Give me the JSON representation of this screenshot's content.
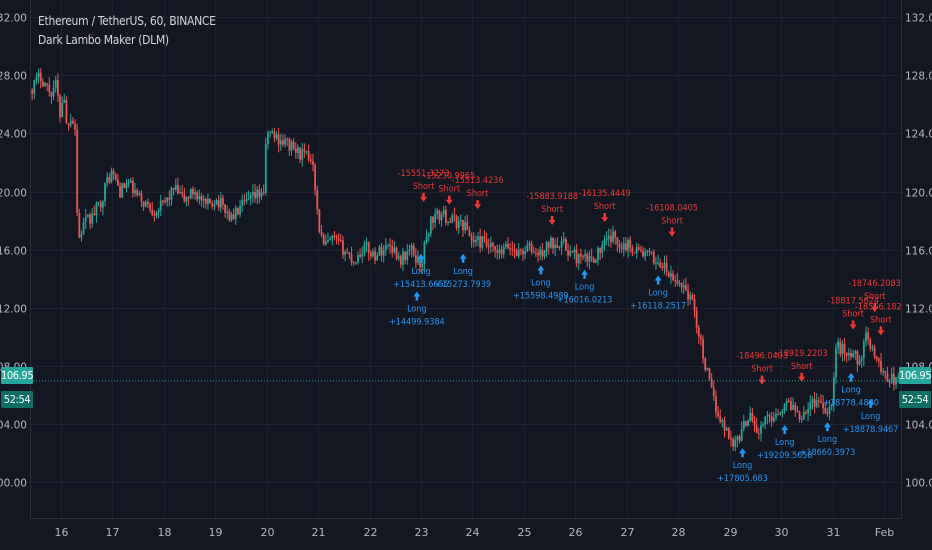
{
  "header": {
    "symbol_line": "Ethereum / TetherUS, 60, BINANCE",
    "indicator_line": "Dark Lambo Maker (DLM)"
  },
  "price_badge": "106.95",
  "time_badge": "52:54",
  "colors": {
    "background": "#131722",
    "grid": "#1f2331",
    "up": "#26a69a",
    "down": "#ef5350",
    "text": "#d1d4dc",
    "axis_text": "#b2b5be",
    "long_signal": "#2196f3",
    "short_signal": "#ef3636"
  },
  "chart_data": {
    "type": "candlestick",
    "title": "Ethereum / TetherUS, 60, BINANCE",
    "indicator": "Dark Lambo Maker (DLM)",
    "y_ticks": [
      "100.00",
      "104.00",
      "108.00",
      "112.00",
      "116.00",
      "120.00",
      "124.00",
      "128.00",
      "132.00"
    ],
    "ylim": [
      97.5,
      133.2
    ],
    "x_ticks": [
      "16",
      "17",
      "18",
      "19",
      "20",
      "21",
      "22",
      "23",
      "24",
      "25",
      "26",
      "27",
      "28",
      "29",
      "30",
      "31",
      "Feb"
    ],
    "x_tick_days": [
      16,
      17,
      18,
      19,
      20,
      21,
      22,
      23,
      24,
      25,
      26,
      27,
      28,
      29,
      30,
      31,
      32
    ],
    "xlim_days": [
      15.4,
      32.35
    ],
    "last_price": 106.95,
    "close_path": [
      [
        15.4,
        127.0
      ],
      [
        15.6,
        128.0
      ],
      [
        15.8,
        126.8
      ],
      [
        15.9,
        127.4
      ],
      [
        16.0,
        125.0
      ],
      [
        16.05,
        127.6
      ],
      [
        16.1,
        124.5
      ],
      [
        16.2,
        125.3
      ],
      [
        16.28,
        124.3
      ],
      [
        16.33,
        116.5
      ],
      [
        16.45,
        117.8
      ],
      [
        16.6,
        118.2
      ],
      [
        16.8,
        119.5
      ],
      [
        16.9,
        120.8
      ],
      [
        17.0,
        121.3
      ],
      [
        17.15,
        120.0
      ],
      [
        17.3,
        120.6
      ],
      [
        17.5,
        119.6
      ],
      [
        17.8,
        118.7
      ],
      [
        18.0,
        119.1
      ],
      [
        18.2,
        120.2
      ],
      [
        18.4,
        119.4
      ],
      [
        18.6,
        120.1
      ],
      [
        18.8,
        118.9
      ],
      [
        19.0,
        119.5
      ],
      [
        19.2,
        118.8
      ],
      [
        19.3,
        118.1
      ],
      [
        19.5,
        118.9
      ],
      [
        19.8,
        119.7
      ],
      [
        19.95,
        120.1
      ],
      [
        20.0,
        124.2
      ],
      [
        20.2,
        123.7
      ],
      [
        20.4,
        123.3
      ],
      [
        20.6,
        122.7
      ],
      [
        20.9,
        122.2
      ],
      [
        21.0,
        117.9
      ],
      [
        21.1,
        116.2
      ],
      [
        21.3,
        116.7
      ],
      [
        21.5,
        116.0
      ],
      [
        21.7,
        115.2
      ],
      [
        21.9,
        116.2
      ],
      [
        22.1,
        115.6
      ],
      [
        22.4,
        116.4
      ],
      [
        22.6,
        115.3
      ],
      [
        22.8,
        116.0
      ],
      [
        23.0,
        114.9
      ],
      [
        23.08,
        116.4
      ],
      [
        23.2,
        118.1
      ],
      [
        23.4,
        118.4
      ],
      [
        23.6,
        118.0
      ],
      [
        23.85,
        117.7
      ],
      [
        24.0,
        116.6
      ],
      [
        24.2,
        116.5
      ],
      [
        24.5,
        115.6
      ],
      [
        24.7,
        116.2
      ],
      [
        24.9,
        115.8
      ],
      [
        25.1,
        116.1
      ],
      [
        25.3,
        115.6
      ],
      [
        25.5,
        116.4
      ],
      [
        25.7,
        116.6
      ],
      [
        25.9,
        115.8
      ],
      [
        26.1,
        115.3
      ],
      [
        26.3,
        115.3
      ],
      [
        26.5,
        116.0
      ],
      [
        26.7,
        116.9
      ],
      [
        26.9,
        116.4
      ],
      [
        27.1,
        116.2
      ],
      [
        27.3,
        115.8
      ],
      [
        27.5,
        115.4
      ],
      [
        27.7,
        114.9
      ],
      [
        27.9,
        113.8
      ],
      [
        28.1,
        113.6
      ],
      [
        28.3,
        112.1
      ],
      [
        28.5,
        108.4
      ],
      [
        28.7,
        105.4
      ],
      [
        28.9,
        103.7
      ],
      [
        29.1,
        102.6
      ],
      [
        29.25,
        103.6
      ],
      [
        29.4,
        104.9
      ],
      [
        29.55,
        103.2
      ],
      [
        29.7,
        104.3
      ],
      [
        29.85,
        104.6
      ],
      [
        30.0,
        105.1
      ],
      [
        30.2,
        105.4
      ],
      [
        30.35,
        104.6
      ],
      [
        30.5,
        105.1
      ],
      [
        30.7,
        105.7
      ],
      [
        30.9,
        105.0
      ],
      [
        31.0,
        105.3
      ],
      [
        31.05,
        109.3
      ],
      [
        31.2,
        109.1
      ],
      [
        31.4,
        108.7
      ],
      [
        31.55,
        108.4
      ],
      [
        31.65,
        109.9
      ],
      [
        31.8,
        109.1
      ],
      [
        31.95,
        107.6
      ],
      [
        32.1,
        107.2
      ],
      [
        32.25,
        106.9
      ],
      [
        32.35,
        106.95
      ]
    ],
    "signals": [
      {
        "type": "long",
        "day": 22.92,
        "price": 113.8,
        "label": "Long",
        "value": "+14499.9384"
      },
      {
        "type": "long",
        "day": 23.0,
        "price": 116.4,
        "label": "Long",
        "value": "+15413.6655"
      },
      {
        "type": "long",
        "day": 23.82,
        "price": 116.4,
        "label": "Long",
        "value": "+15273.7939"
      },
      {
        "type": "long",
        "day": 25.33,
        "price": 115.6,
        "label": "Long",
        "value": "+15598.4989"
      },
      {
        "type": "long",
        "day": 26.18,
        "price": 115.3,
        "label": "Long",
        "value": "+16016.0213"
      },
      {
        "type": "long",
        "day": 27.61,
        "price": 114.9,
        "label": "Long",
        "value": "+16118.2517"
      },
      {
        "type": "long",
        "day": 29.25,
        "price": 103.0,
        "label": "Long",
        "value": "+17805.683"
      },
      {
        "type": "long",
        "day": 30.07,
        "price": 104.6,
        "label": "Long",
        "value": "+19209.5658"
      },
      {
        "type": "long",
        "day": 30.9,
        "price": 104.8,
        "label": "Long",
        "value": "+18660.3973"
      },
      {
        "type": "long",
        "day": 31.36,
        "price": 108.2,
        "label": "Long",
        "value": "+18778.4880"
      },
      {
        "type": "long",
        "day": 31.74,
        "price": 106.4,
        "label": "Long",
        "value": "+18878.9467"
      },
      {
        "type": "short",
        "day": 23.05,
        "price": 118.6,
        "label": "Short",
        "value": "-15551.3273"
      },
      {
        "type": "short",
        "day": 23.55,
        "price": 118.4,
        "label": "Short",
        "value": "-15230.9965"
      },
      {
        "type": "short",
        "day": 24.1,
        "price": 118.1,
        "label": "Short",
        "value": "-15513.4236"
      },
      {
        "type": "short",
        "day": 25.55,
        "price": 117.0,
        "label": "Short",
        "value": "-15883.9188"
      },
      {
        "type": "short",
        "day": 26.57,
        "price": 117.2,
        "label": "Short",
        "value": "-16135.4449"
      },
      {
        "type": "short",
        "day": 27.88,
        "price": 116.2,
        "label": "Short",
        "value": "-16108.0405"
      },
      {
        "type": "short",
        "day": 29.63,
        "price": 106.0,
        "label": "Short",
        "value": "-18496.0403"
      },
      {
        "type": "short",
        "day": 30.4,
        "price": 106.2,
        "label": "Short",
        "value": "-18919.2203"
      },
      {
        "type": "short",
        "day": 31.4,
        "price": 109.8,
        "label": "Short",
        "value": "-18817.5624"
      },
      {
        "type": "short",
        "day": 31.82,
        "price": 111.0,
        "label": "Short",
        "value": "-18746.2083"
      },
      {
        "type": "short",
        "day": 31.94,
        "price": 109.4,
        "label": "Short",
        "value": "-18566.1829"
      }
    ]
  }
}
